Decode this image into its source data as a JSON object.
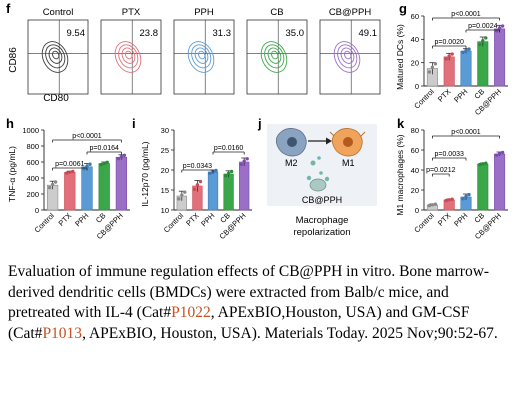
{
  "panels": {
    "f": {
      "letter": "f",
      "y_axis_label": "CD86",
      "x_axis_label": "CD80",
      "groups": [
        {
          "name": "Control",
          "percent": "9.54",
          "color": "#3c3c3c"
        },
        {
          "name": "PTX",
          "percent": "23.8",
          "color": "#e2707a"
        },
        {
          "name": "PPH",
          "percent": "31.3",
          "color": "#5b9bd5"
        },
        {
          "name": "CB",
          "percent": "35.0",
          "color": "#3aa84a"
        },
        {
          "name": "CB@PPH",
          "percent": "49.1",
          "color": "#9b6fc6"
        }
      ]
    },
    "g": {
      "letter": "g",
      "ylabel": "Matured DCs (%)",
      "ylim": [
        0,
        60
      ],
      "yticks": [
        0,
        20,
        40,
        60
      ],
      "categories": [
        "Control",
        "PTX",
        "PPH",
        "CB",
        "CB@PPH"
      ],
      "values": [
        15,
        25,
        30,
        38,
        49
      ],
      "errors": [
        5,
        3,
        2,
        4,
        3
      ],
      "pvalues": [
        {
          "from": 0,
          "to": 4,
          "text": "p<0.0001"
        },
        {
          "from": 2,
          "to": 4,
          "text": "p=0.0024"
        },
        {
          "from": 0,
          "to": 2,
          "text": "p=0.0020"
        }
      ]
    },
    "h": {
      "letter": "h",
      "ylabel": "TNF-α (pg/mL)",
      "ylim": [
        0,
        1000
      ],
      "yticks": [
        0,
        200,
        400,
        600,
        800,
        1000
      ],
      "categories": [
        "Control",
        "PTX",
        "PPH",
        "CB",
        "CB@PPH"
      ],
      "values": [
        310,
        470,
        540,
        580,
        660
      ],
      "errors": [
        50,
        15,
        40,
        20,
        30
      ],
      "pvalues": [
        {
          "from": 0,
          "to": 4,
          "text": "p<0.0001"
        },
        {
          "from": 2,
          "to": 4,
          "text": "p=0.0164"
        },
        {
          "from": 0,
          "to": 2,
          "text": "p=0.0061"
        }
      ]
    },
    "i": {
      "letter": "i",
      "ylabel": "IL-12p70 (pg/mL)",
      "ylim": [
        10,
        30
      ],
      "yticks": [
        10,
        15,
        20,
        25,
        30
      ],
      "categories": [
        "Control",
        "PTX",
        "PPH",
        "CB",
        "CB@PPH"
      ],
      "values": [
        13.5,
        16,
        19.5,
        19,
        22
      ],
      "errors": [
        1.2,
        1.4,
        0.5,
        0.8,
        1
      ],
      "pvalues": [
        {
          "from": 2,
          "to": 4,
          "text": "p=0.0160"
        },
        {
          "from": 0,
          "to": 2,
          "text": "p=0.0343"
        }
      ]
    },
    "j": {
      "letter": "j",
      "cell_left": "M2",
      "cell_right": "M1",
      "drug": "CB@PPH",
      "caption_line1": "Macrophage",
      "caption_line2": "repolarization"
    },
    "k": {
      "letter": "k",
      "ylabel": "M1 macrophages (%)",
      "ylim": [
        0,
        80
      ],
      "yticks": [
        0,
        20,
        40,
        60,
        80
      ],
      "categories": [
        "Control",
        "PTX",
        "PPH",
        "CB",
        "CB@PPH"
      ],
      "values": [
        5,
        10,
        13,
        46,
        56
      ],
      "errors": [
        1,
        1,
        3,
        1,
        2
      ],
      "pvalues": [
        {
          "from": 0,
          "to": 4,
          "text": "p<0.0001"
        },
        {
          "from": 0,
          "to": 2,
          "text": "p=0.0033"
        },
        {
          "from": 0,
          "to": 1,
          "text": "p=0.0212"
        }
      ]
    }
  },
  "caption": {
    "part1": "Evaluation of immune regulation effects of CB@PPH in vitro. Bone marrow-derived dendritic cells (BMDCs) were extracted from Balb/c mice, and pretreated with IL-4 (Cat#",
    "cat1": "P1022",
    "part2": ", APExBIO,Houston, USA) and GM-CSF (Cat#",
    "cat2": "P1013",
    "part3": ", APExBIO, Houston, USA). Materials  Today. 2025 Nov;90:52-67."
  }
}
